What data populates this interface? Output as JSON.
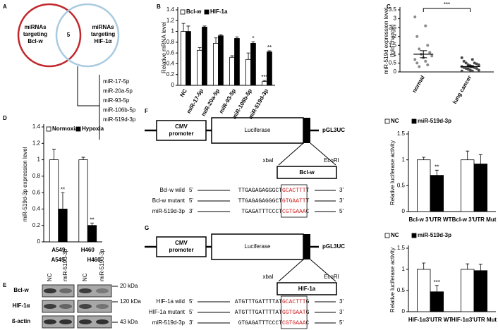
{
  "panel_labels": [
    "A",
    "B",
    "C",
    "D",
    "E",
    "F",
    "G"
  ],
  "venn": {
    "left": [
      "miRNAs",
      "targeting",
      "Bcl-w"
    ],
    "right": [
      "miRNAs",
      "targeting",
      "HIF-1α"
    ],
    "overlap": "5",
    "list": [
      "miR-17-5p",
      "miR-20a-5p",
      "miR-93-5p",
      "miR-106b-5p",
      "miR-519d-3p"
    ]
  },
  "blot": {
    "cell_lines": [
      "A549",
      "H460"
    ],
    "lanes": [
      "NC",
      "miR-519d-3p",
      "NC",
      "miR-519d-3p"
    ],
    "proteins": [
      "Bcl-w",
      "HIF-1α",
      "ß-actin"
    ],
    "sizes": [
      "20 kDa",
      "120 kDa",
      "43 kDa"
    ]
  },
  "constructs": [
    {
      "promoter": [
        "CMV",
        "promoter"
      ],
      "gene": "Luciferase",
      "vector": "pGL3UC",
      "site_left": "xbaI",
      "site_right": "EcoRI",
      "insert": "Bcl-w",
      "rows": [
        {
          "label": "Bcl-w wild",
          "start": "5'",
          "pre": "TTGAGAGAGGGCT",
          "seed": "GCACTTT",
          "post": "T",
          "end": "3'"
        },
        {
          "label": "Bcl-w mutant",
          "start": "5'",
          "pre": "TTGAGAGAGGGCT",
          "seed": "GTGAATT",
          "post": "T",
          "end": "3'"
        },
        {
          "label": "miR-519d-3p",
          "start": "3'",
          "pre": "TGAGATTTCCCT",
          "seed": "CGTGAAA",
          "post": "C",
          "end": "5'"
        }
      ]
    },
    {
      "promoter": [
        "CMV",
        "promoter"
      ],
      "gene": "Luciferase",
      "vector": "pGL3UC",
      "site_left": "xbaI",
      "site_right": "EcoRI",
      "insert": "HIF-1a",
      "rows": [
        {
          "label": "HIF-1a wild",
          "start": "5'",
          "pre": "ATGTTTGATTTTAT",
          "seed": "GCACTTT",
          "post": "G",
          "end": "3'"
        },
        {
          "label": "HIF-1a mutant",
          "start": "5'",
          "pre": "ATGTTTGATTTTAT",
          "seed": "GGTGAAT",
          "post": "G",
          "end": "3'"
        },
        {
          "label": "miR-519d-3p",
          "start": "3'",
          "pre": "GTGAGATTTCCCT",
          "seed": "CGTGAAA",
          "post": "C",
          "end": "5'"
        }
      ]
    }
  ],
  "chart_data": [
    {
      "type": "bar",
      "ylabel": "Relative  mRNA level",
      "categories": [
        "NC",
        "miR-17-5p",
        "miR-20a-5p",
        "miR-93-5p",
        "miR-106b-5p",
        "miR-519d-3p"
      ],
      "series": [
        {
          "name": "Bcl-w",
          "color": "#ffffff",
          "values": [
            1.0,
            0.65,
            0.78,
            0.52,
            0.48,
            0.07
          ],
          "errors": [
            0.15,
            0.05,
            0.1,
            0.03,
            0.12,
            0.02
          ],
          "significance": [
            null,
            null,
            null,
            null,
            null,
            "***"
          ]
        },
        {
          "name": "HIF-1a",
          "color": "#000000",
          "values": [
            1.0,
            1.08,
            0.92,
            0.87,
            0.78,
            0.62
          ],
          "errors": [
            0.1,
            0.02,
            0.02,
            0.03,
            0.03,
            0.02
          ],
          "significance": [
            null,
            null,
            null,
            null,
            "*",
            "**"
          ]
        }
      ],
      "ylim": [
        0,
        1.4
      ],
      "yticks": [
        0,
        0.2,
        0.4,
        0.6,
        0.8,
        1,
        1.2,
        1.4
      ]
    },
    {
      "type": "strip",
      "ylabel": [
        "miR-519d expression level",
        "(fold change)"
      ],
      "categories": [
        "normal",
        "lung cancer"
      ],
      "groups": [
        {
          "color": "#8a8a8a",
          "values": [
            3.1,
            2.6,
            2.0,
            1.5,
            1.3,
            1.1,
            1.0,
            0.9,
            0.8,
            0.7,
            0.6,
            0.5,
            0.4,
            0.3
          ]
        },
        {
          "color": "#4a4a4a",
          "values": [
            0.8,
            0.7,
            0.6,
            0.5,
            0.5,
            0.45,
            0.4,
            0.4,
            0.35,
            0.3,
            0.3,
            0.25,
            0.25,
            0.2,
            0.2,
            0.15,
            0.1,
            0.1,
            0.05,
            0.05
          ]
        }
      ],
      "means": [
        1.0,
        0.3
      ],
      "errors": [
        0.2,
        0.06
      ],
      "annotation": "***",
      "ylim": [
        0,
        3.5
      ],
      "yticks": [
        0,
        0.5,
        1,
        1.5,
        2,
        2.5,
        3,
        3.5
      ]
    },
    {
      "type": "bar",
      "ylabel": "miR-519d-3p expression level",
      "categories": [
        "A549",
        "H460"
      ],
      "series": [
        {
          "name": "Normoxia",
          "color": "#ffffff",
          "values": [
            1.0,
            1.0
          ],
          "errors": [
            0.13,
            0.03
          ],
          "significance": [
            null,
            null
          ]
        },
        {
          "name": "Hypoxia",
          "color": "#000000",
          "values": [
            0.4,
            0.2
          ],
          "errors": [
            0.2,
            0.03
          ],
          "significance": [
            "**",
            "**"
          ]
        }
      ],
      "ylim": [
        0,
        1.4
      ],
      "yticks": [
        0,
        0.2,
        0.4,
        0.6,
        0.8,
        1,
        1.2,
        1.4
      ]
    },
    {
      "type": "bar",
      "ylabel": "Relative luciferase activity",
      "categories": [
        "Bcl-w 3'UTR WT",
        "Bcl-w 3'UTR Mut"
      ],
      "series": [
        {
          "name": "NC",
          "color": "#ffffff",
          "values": [
            1.0,
            1.0
          ],
          "errors": [
            0.05,
            0.17
          ],
          "significance": [
            null,
            null
          ]
        },
        {
          "name": "miR-519d-3p",
          "color": "#000000",
          "values": [
            0.7,
            0.92
          ],
          "errors": [
            0.1,
            0.18
          ],
          "significance": [
            "**",
            null
          ]
        }
      ],
      "ylim": [
        0,
        1.5
      ],
      "yticks": [
        0,
        0.5,
        1,
        1.5
      ]
    },
    {
      "type": "bar",
      "ylabel": "Relative luciferase activity",
      "categories": [
        "HIF-1α3'UTR WT",
        "HIF-1α3'UTR Mut"
      ],
      "series": [
        {
          "name": "NC",
          "color": "#ffffff",
          "values": [
            1.0,
            1.0
          ],
          "errors": [
            0.15,
            0.13
          ],
          "significance": [
            null,
            null
          ]
        },
        {
          "name": "miR-519d-3p",
          "color": "#000000",
          "values": [
            0.47,
            0.97
          ],
          "errors": [
            0.15,
            0.15
          ],
          "significance": [
            "***",
            null
          ]
        }
      ],
      "ylim": [
        0,
        1.5
      ],
      "yticks": [
        0,
        0.5,
        1,
        1.5
      ]
    }
  ]
}
